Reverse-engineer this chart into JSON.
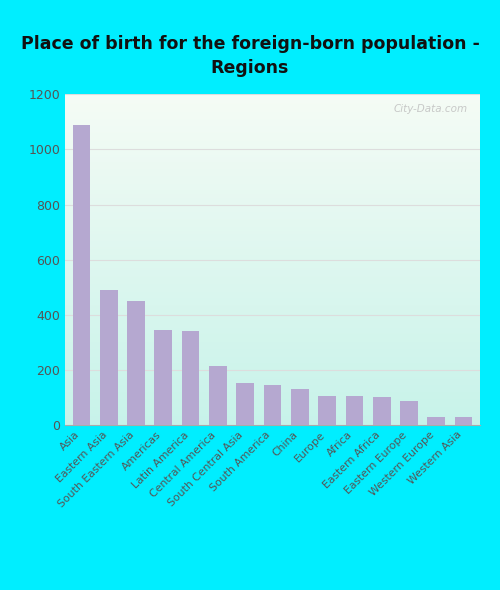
{
  "title_line1": "Place of birth for the foreign-born population -",
  "title_line2": "Regions",
  "categories": [
    "Asia",
    "Eastern Asia",
    "South Eastern Asia",
    "Americas",
    "Latin America",
    "Central America",
    "South Central Asia",
    "South America",
    "China",
    "Europe",
    "Africa",
    "Eastern Africa",
    "Eastern Europe",
    "Western Europe",
    "Western Asia"
  ],
  "values": [
    1090,
    490,
    450,
    345,
    340,
    215,
    150,
    143,
    130,
    105,
    103,
    102,
    85,
    27,
    30
  ],
  "bar_color": "#b5a8d0",
  "bg_outer": "#00eeff",
  "bg_topleft": [
    0.92,
    0.97,
    0.92
  ],
  "bg_topright": [
    1.0,
    1.0,
    1.0
  ],
  "bg_bottomleft": [
    0.78,
    0.95,
    0.88
  ],
  "bg_bottomright": [
    0.78,
    0.95,
    0.95
  ],
  "tick_color": "#555555",
  "title_color": "#111111",
  "watermark_text": "City-Data.com",
  "ylim_max": 1200,
  "yticks": [
    0,
    200,
    400,
    600,
    800,
    1000,
    1200
  ],
  "grid_color": "#dddddd"
}
